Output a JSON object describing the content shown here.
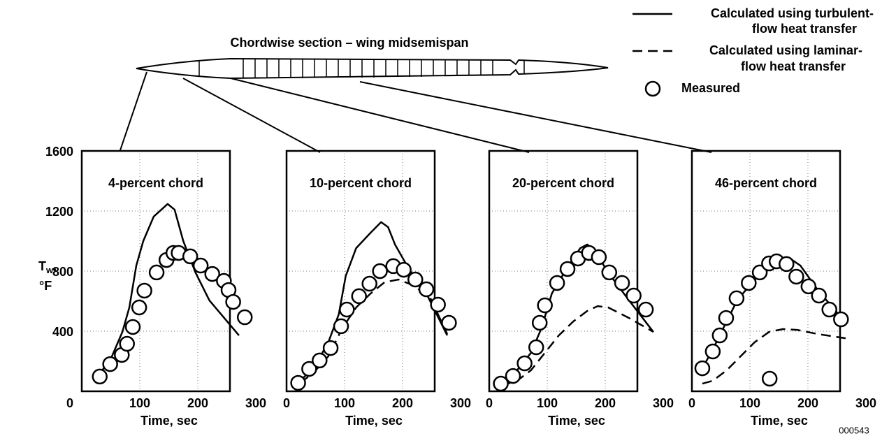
{
  "wing_label": "Chordwise section – wing midsemispan",
  "ylabel": {
    "main": "T",
    "sub": "w",
    "suffix": ",",
    "unit": "°F"
  },
  "figure_number": "000543",
  "legend": [
    {
      "label": [
        "Calculated using turbulent-",
        "flow heat transfer"
      ],
      "style": "solid"
    },
    {
      "label": [
        "Calculated using laminar-",
        "flow heat transfer"
      ],
      "style": "dashed"
    },
    {
      "label": [
        "Measured"
      ],
      "style": "marker"
    }
  ],
  "chart_data": [
    {
      "type": "line",
      "title": "4-percent chord",
      "xlabel": "Time, sec",
      "xlim": [
        0,
        300
      ],
      "ylim": [
        0,
        1600
      ],
      "xticks": [
        100,
        200,
        300
      ],
      "yticks": [
        0,
        400,
        800,
        1200,
        1600
      ],
      "ytick_labels": true,
      "grid": true,
      "series": [
        {
          "style": "solid",
          "x": [
            31,
            52,
            70,
            82,
            94,
            106,
            124,
            148,
            160,
            175,
            196,
            220,
            271
          ],
          "values": [
            116,
            233,
            395,
            558,
            837,
            1000,
            1163,
            1247,
            1209,
            1000,
            791,
            605,
            372
          ]
        },
        {
          "style": "marker",
          "x": [
            31,
            49,
            69,
            78,
            88,
            99,
            108,
            129,
            146,
            158,
            167,
            187,
            205,
            225,
            245,
            253,
            261,
            281
          ],
          "values": [
            98,
            181,
            242,
            316,
            428,
            558,
            670,
            791,
            874,
            921,
            921,
            898,
            837,
            781,
            735,
            674,
            595,
            493
          ]
        }
      ]
    },
    {
      "type": "line",
      "title": "10-percent chord",
      "xlabel": "Time, sec",
      "xlim": [
        0,
        300
      ],
      "ylim": [
        0,
        1600
      ],
      "xticks": [
        0,
        100,
        200,
        300
      ],
      "yticks": [
        0,
        400,
        800,
        1200,
        1600
      ],
      "ytick_labels": false,
      "grid": true,
      "series": [
        {
          "style": "solid",
          "x": [
            20,
            48,
            72,
            90,
            102,
            120,
            145,
            163,
            175,
            187,
            211,
            241,
            277
          ],
          "values": [
            56,
            163,
            326,
            512,
            767,
            953,
            1056,
            1126,
            1093,
            977,
            814,
            651,
            372
          ]
        },
        {
          "style": "dashed",
          "x": [
            24,
            48,
            72,
            96,
            120,
            145,
            169,
            193,
            217,
            247,
            277
          ],
          "values": [
            56,
            130,
            233,
            419,
            558,
            651,
            726,
            744,
            707,
            628,
            381
          ]
        },
        {
          "style": "marker",
          "x": [
            20,
            39,
            57,
            76,
            94,
            104,
            125,
            143,
            161,
            184,
            202,
            222,
            241,
            261,
            280
          ],
          "values": [
            56,
            149,
            205,
            288,
            433,
            544,
            633,
            716,
            800,
            833,
            809,
            744,
            679,
            577,
            456
          ]
        }
      ]
    },
    {
      "type": "line",
      "title": "20-percent chord",
      "xlabel": "Time, sec",
      "xlim": [
        0,
        300
      ],
      "ylim": [
        0,
        1600
      ],
      "xticks": [
        0,
        100,
        200,
        300
      ],
      "yticks": [
        0,
        400,
        800,
        1200,
        1600
      ],
      "ytick_labels": false,
      "grid": true,
      "series": [
        {
          "style": "solid",
          "x": [
            20,
            48,
            72,
            90,
            108,
            133,
            157,
            169,
            181,
            205,
            241,
            283
          ],
          "values": [
            51,
            140,
            256,
            419,
            651,
            814,
            953,
            977,
            940,
            791,
            605,
            395
          ]
        },
        {
          "style": "dashed",
          "x": [
            20,
            48,
            72,
            96,
            120,
            145,
            169,
            187,
            205,
            241,
            283
          ],
          "values": [
            37,
            70,
            140,
            256,
            372,
            465,
            535,
            567,
            558,
            488,
            395
          ]
        },
        {
          "style": "marker",
          "x": [
            20,
            41,
            61,
            81,
            87,
            96,
            117,
            135,
            153,
            172,
            189,
            207,
            229,
            249,
            270
          ],
          "values": [
            51,
            102,
            186,
            293,
            456,
            572,
            721,
            814,
            884,
            921,
            893,
            791,
            721,
            637,
            544
          ]
        }
      ]
    },
    {
      "type": "line",
      "title": "46-percent chord",
      "xlabel": "Time, sec",
      "xlim": [
        0,
        300
      ],
      "ylim": [
        0,
        1600
      ],
      "xticks": [
        0,
        100,
        200,
        300
      ],
      "yticks": [
        0,
        400,
        800,
        1200,
        1600
      ],
      "ytick_labels": false,
      "grid": true,
      "series": [
        {
          "style": "solid",
          "x": [
            18,
            36,
            54,
            78,
            108,
            133,
            157,
            169,
            187,
            217,
            265
          ],
          "values": [
            153,
            279,
            419,
            605,
            744,
            814,
            874,
            884,
            837,
            674,
            456
          ]
        },
        {
          "style": "dashed",
          "x": [
            18,
            36,
            60,
            84,
            108,
            133,
            157,
            181,
            217,
            265
          ],
          "values": [
            51,
            70,
            140,
            233,
            326,
            395,
            414,
            409,
            381,
            353
          ]
        },
        {
          "style": "marker",
          "x": [
            18,
            36,
            48,
            59,
            77,
            98,
            117,
            133,
            146,
            163,
            180,
            201,
            219,
            237,
            257,
            134
          ],
          "values": [
            153,
            265,
            372,
            488,
            619,
            721,
            791,
            851,
            865,
            847,
            763,
            698,
            637,
            544,
            479,
            84
          ]
        }
      ]
    }
  ]
}
